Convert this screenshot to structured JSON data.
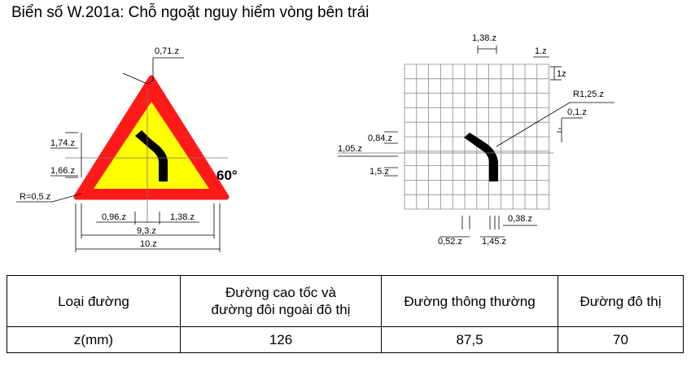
{
  "title": "Biển số W.201a: Chỗ ngoặt nguy hiểm vòng bên trái",
  "sign_drawing": {
    "angle_label": "60°",
    "dims": {
      "border": "0,71.z",
      "h1": "1,74.z",
      "h2": "1,66.z",
      "radius": "R=0,5.z",
      "b1": "0,96.z",
      "b2": "1,38.z",
      "inner_base": "9,3.z",
      "base": "10.z"
    },
    "colors": {
      "border": "#ff1a1a",
      "fill": "#ffff00",
      "symbol": "#000000"
    }
  },
  "grid_drawing": {
    "dims": {
      "top": "1,38.z",
      "cell_w": "1.z",
      "cell_h": "1z",
      "radius": "R1,25.z",
      "offset": "0,1.z",
      "d084": "0,84.z",
      "d105": "1,05.z",
      "d15": "1,5.z",
      "d038": "0,38.z",
      "d052": "0,52.z",
      "d145": "1,45.z"
    }
  },
  "table": {
    "headers": [
      "Loại đường",
      "Đường cao tốc và\nđường đôi ngoài đô thị",
      "Đường thông thường",
      "Đường đô thị"
    ],
    "row_label": "z(mm)",
    "values": [
      "126",
      "87,5",
      "70"
    ]
  }
}
